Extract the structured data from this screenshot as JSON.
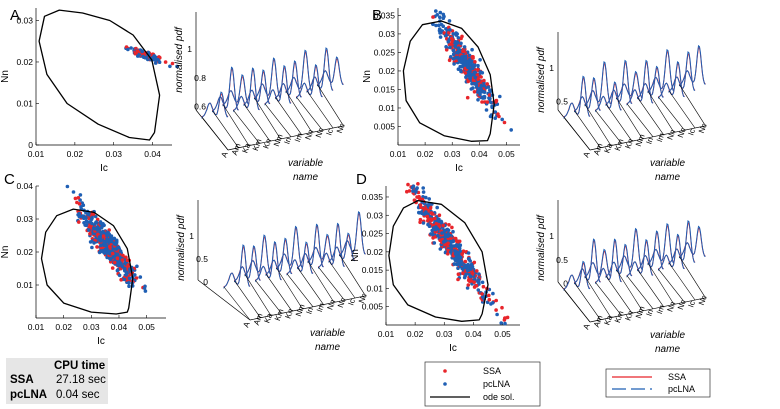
{
  "chart_data": [
    {
      "panel": "A",
      "type": "scatter",
      "xlabel": "Ic",
      "ylabel": "Nn",
      "xlim": [
        0.01,
        0.045
      ],
      "ylim": [
        0.0,
        0.033
      ],
      "xticks": [
        "0.01",
        "0.02",
        "0.03",
        "0.04"
      ],
      "yticks": [
        "0",
        "0.01",
        "0.02",
        "0.03"
      ],
      "cloud": {
        "center": [
          0.0385,
          0.0215
        ],
        "spread": [
          0.002,
          0.0004
        ],
        "slope": -0.35
      },
      "ode": [
        [
          0.0405,
          0.003
        ],
        [
          0.0418,
          0.012
        ],
        [
          0.0398,
          0.0205
        ],
        [
          0.035,
          0.0265
        ],
        [
          0.029,
          0.03
        ],
        [
          0.022,
          0.0318
        ],
        [
          0.016,
          0.0325
        ],
        [
          0.0122,
          0.031
        ],
        [
          0.0108,
          0.025
        ],
        [
          0.0128,
          0.017
        ],
        [
          0.018,
          0.01
        ],
        [
          0.026,
          0.005
        ],
        [
          0.034,
          0.0018
        ],
        [
          0.0392,
          0.0012
        ],
        [
          0.0405,
          0.003
        ]
      ],
      "pdf_zticks": [
        "0.6",
        "0.8",
        "1"
      ],
      "pdf_variables": [
        "A",
        "Am",
        "Ka",
        "Km",
        "Kn",
        "Nm",
        "In",
        "Im",
        "Nn",
        "Nc",
        "Ic",
        "Nc"
      ],
      "pdf_zlabel": "normalised pdf",
      "pdf_xlabel": "variable name"
    },
    {
      "panel": "B",
      "type": "scatter",
      "xlabel": "Ic",
      "ylabel": "Nn",
      "xlim": [
        0.01,
        0.055
      ],
      "ylim": [
        0.0,
        0.037
      ],
      "xticks": [
        "0.01",
        "0.02",
        "0.03",
        "0.04",
        "0.05"
      ],
      "yticks": [
        "0.005",
        "0.01",
        "0.015",
        "0.02",
        "0.025",
        "0.03",
        "0.035"
      ],
      "cloud": {
        "center": [
          0.036,
          0.021
        ],
        "spread": [
          0.005,
          0.002
        ],
        "slope": -1.05
      },
      "ode": [
        [
          0.044,
          0.003
        ],
        [
          0.0455,
          0.011
        ],
        [
          0.044,
          0.019
        ],
        [
          0.0395,
          0.0265
        ],
        [
          0.0335,
          0.0315
        ],
        [
          0.026,
          0.0335
        ],
        [
          0.019,
          0.0325
        ],
        [
          0.0145,
          0.028
        ],
        [
          0.012,
          0.02
        ],
        [
          0.013,
          0.012
        ],
        [
          0.018,
          0.006
        ],
        [
          0.027,
          0.0025
        ],
        [
          0.037,
          0.001
        ],
        [
          0.043,
          0.0012
        ],
        [
          0.044,
          0.003
        ]
      ],
      "pdf_zticks": [
        "0.5",
        "1"
      ],
      "pdf_variables": [
        "A",
        "Am",
        "Ka",
        "Km",
        "Kn",
        "Nm",
        "In",
        "Im",
        "Nn",
        "Nc",
        "Ic",
        "Nc"
      ]
    },
    {
      "panel": "C",
      "type": "scatter",
      "xlabel": "Ic",
      "ylabel": "Nn",
      "xlim": [
        0.01,
        0.057
      ],
      "ylim": [
        0.0,
        0.04
      ],
      "xticks": [
        "0.01",
        "0.02",
        "0.03",
        "0.04",
        "0.05"
      ],
      "yticks": [
        "0.01",
        "0.02",
        "0.03",
        "0.04"
      ],
      "cloud": {
        "center": [
          0.036,
          0.022
        ],
        "spread": [
          0.005,
          0.0022
        ],
        "slope": -1.0
      },
      "ode": [
        [
          0.0435,
          0.003
        ],
        [
          0.045,
          0.012
        ],
        [
          0.043,
          0.021
        ],
        [
          0.038,
          0.028
        ],
        [
          0.031,
          0.032
        ],
        [
          0.0235,
          0.033
        ],
        [
          0.0175,
          0.031
        ],
        [
          0.0135,
          0.026
        ],
        [
          0.012,
          0.018
        ],
        [
          0.014,
          0.01
        ],
        [
          0.02,
          0.0045
        ],
        [
          0.03,
          0.0018
        ],
        [
          0.039,
          0.0012
        ],
        [
          0.043,
          0.0018
        ],
        [
          0.0435,
          0.003
        ]
      ],
      "pdf_zticks": [
        "0",
        "0.5",
        "1"
      ],
      "pdf_variables": [
        "A",
        "Am",
        "Ka",
        "Km",
        "Kn",
        "Nm",
        "In",
        "Im",
        "Nn",
        "Nc",
        "Ic",
        "Nc"
      ]
    },
    {
      "panel": "D",
      "type": "scatter",
      "xlabel": "Ic",
      "ylabel": "Nn",
      "xlim": [
        0.01,
        0.056
      ],
      "ylim": [
        0.0,
        0.038
      ],
      "xticks": [
        "0.01",
        "0.02",
        "0.03",
        "0.04",
        "0.05"
      ],
      "yticks": [
        "0.005",
        "0.01",
        "0.015",
        "0.02",
        "0.025",
        "0.03",
        "0.035"
      ],
      "cloud": {
        "center": [
          0.032,
          0.022
        ],
        "spread": [
          0.007,
          0.002
        ],
        "slope": -1.1
      },
      "ode": [
        [
          0.043,
          0.003
        ],
        [
          0.045,
          0.011
        ],
        [
          0.043,
          0.02
        ],
        [
          0.037,
          0.028
        ],
        [
          0.029,
          0.033
        ],
        [
          0.021,
          0.034
        ],
        [
          0.016,
          0.032
        ],
        [
          0.0125,
          0.027
        ],
        [
          0.011,
          0.019
        ],
        [
          0.0125,
          0.011
        ],
        [
          0.0175,
          0.0055
        ],
        [
          0.027,
          0.0022
        ],
        [
          0.036,
          0.001
        ],
        [
          0.042,
          0.0014
        ],
        [
          0.043,
          0.003
        ]
      ],
      "pdf_zticks": [
        "0",
        "0.5",
        "1"
      ],
      "pdf_variables": [
        "A",
        "Am",
        "Ka",
        "Km",
        "Kn",
        "Nm",
        "In",
        "Im",
        "Nn",
        "Nc",
        "Ic",
        "Nc"
      ]
    }
  ],
  "panel_labels": {
    "A": "A",
    "B": "B",
    "C": "C",
    "D": "D"
  },
  "axis_text": {
    "zlabel": "normalised pdf",
    "xlabel_line1": "variable",
    "xlabel_line2": "name"
  },
  "legend_scatter": {
    "ssa": "SSA",
    "pclna": "pcLNA",
    "ode": "ode sol."
  },
  "legend_lines": {
    "ssa": "SSA",
    "pclna": "pcLNA"
  },
  "colors": {
    "ssa": "#e8252b",
    "pclna": "#1f5fb4",
    "ode": "#000000"
  },
  "cpu_table": {
    "header": "CPU time",
    "rows": [
      {
        "label": "SSA",
        "value": "27.18 sec"
      },
      {
        "label": "pcLNA",
        "value": "0.04 sec"
      }
    ]
  }
}
